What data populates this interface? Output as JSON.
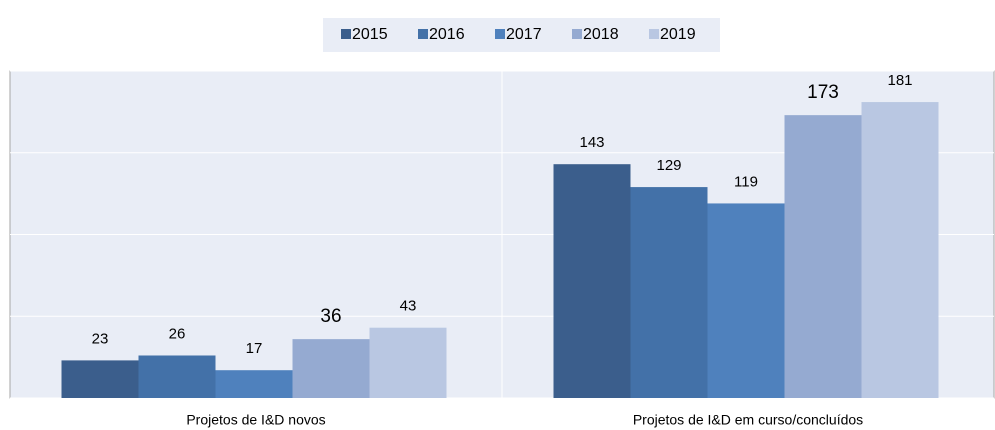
{
  "chart_data": {
    "type": "bar",
    "categories": [
      "Projetos de I&D novos",
      "Projetos de I&D em curso/concluídos"
    ],
    "series": [
      {
        "name": "2015",
        "color": "#3b5e8c",
        "values": [
          23,
          143
        ]
      },
      {
        "name": "2016",
        "color": "#4371a8",
        "values": [
          26,
          129
        ]
      },
      {
        "name": "2017",
        "color": "#4f81bd",
        "values": [
          17,
          119
        ]
      },
      {
        "name": "2018",
        "color": "#95aad1",
        "values": [
          36,
          173
        ]
      },
      {
        "name": "2019",
        "color": "#b9c7e2",
        "values": [
          43,
          181
        ]
      }
    ],
    "ylim": [
      0,
      200
    ],
    "yticks": [
      0,
      50,
      100,
      150,
      200
    ],
    "grid": true,
    "legend": "top"
  }
}
